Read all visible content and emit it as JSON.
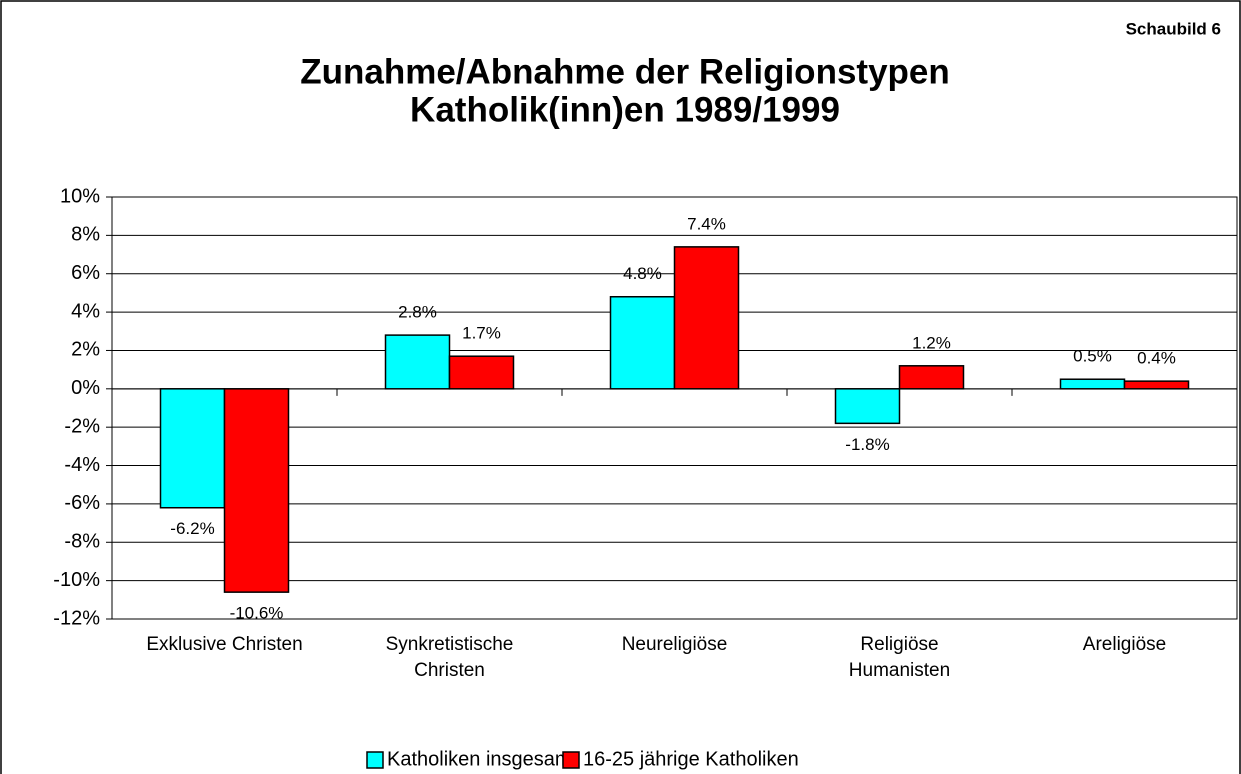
{
  "chart_data": {
    "type": "bar",
    "corner_label": "Schaubild 6",
    "title": "Zunahme/Abnahme der Religionstypen",
    "subtitle": "Katholik(inn)en 1989/1999",
    "categories": [
      "Exklusive Christen",
      "Synkretistische\nChristen",
      "Neureligiöse",
      "Religiöse\nHumanisten",
      "Areligiöse"
    ],
    "series": [
      {
        "name": "Katholiken insgesamt",
        "color": "#00ffff",
        "values": [
          -6.2,
          2.8,
          4.8,
          -1.8,
          0.5
        ],
        "value_labels": [
          "-6.2%",
          "2.8%",
          "4.8%",
          "-1.8%",
          "0.5%"
        ]
      },
      {
        "name": "16-25 jährige Katholiken",
        "color": "#ff0000",
        "values": [
          -10.6,
          1.7,
          7.4,
          1.2,
          0.4
        ],
        "value_labels": [
          "-10.6%",
          "1.7%",
          "7.4%",
          "1.2%",
          "0.4%"
        ]
      }
    ],
    "ylim": [
      -12,
      10
    ],
    "yticks": [
      {
        "value": -12,
        "label": "-12%"
      },
      {
        "value": -10,
        "label": "-10%"
      },
      {
        "value": -8,
        "label": "-8%"
      },
      {
        "value": -6,
        "label": "-6%"
      },
      {
        "value": -4,
        "label": "-4%"
      },
      {
        "value": -2,
        "label": "-2%"
      },
      {
        "value": 0,
        "label": "0%"
      },
      {
        "value": 2,
        "label": "2%"
      },
      {
        "value": 4,
        "label": "4%"
      },
      {
        "value": 6,
        "label": "6%"
      },
      {
        "value": 8,
        "label": "8%"
      },
      {
        "value": 10,
        "label": "10%"
      }
    ],
    "grid": true,
    "legend": "bottom"
  }
}
